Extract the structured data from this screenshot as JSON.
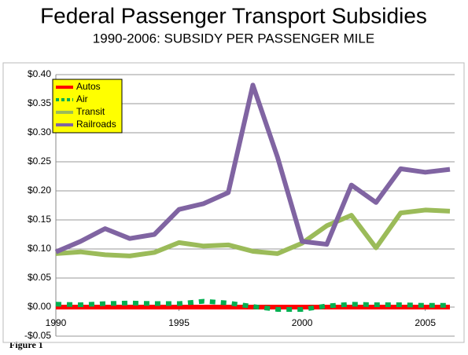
{
  "chart_data": {
    "type": "line",
    "title": "Federal Passenger Transport Subsidies",
    "subtitle": "1990-2006: SUBSIDY PER PASSENGER MILE",
    "note": "Figure 1",
    "x": [
      1990,
      1991,
      1992,
      1993,
      1994,
      1995,
      1996,
      1997,
      1998,
      1999,
      2000,
      2001,
      2002,
      2003,
      2004,
      2005,
      2006
    ],
    "xlim": [
      1990,
      2006
    ],
    "xticks": [
      1990,
      1995,
      2000,
      2005
    ],
    "ylim": [
      -0.05,
      0.4
    ],
    "yticks": [
      {
        "value": -0.05,
        "label": "-$0.05"
      },
      {
        "value": 0,
        "label": "$0.00"
      },
      {
        "value": 0.05,
        "label": "$0.05"
      },
      {
        "value": 0.1,
        "label": "$0.10"
      },
      {
        "value": 0.15,
        "label": "$0.15"
      },
      {
        "value": 0.2,
        "label": "$0.20"
      },
      {
        "value": 0.25,
        "label": "$0.25"
      },
      {
        "value": 0.3,
        "label": "$0.30"
      },
      {
        "value": 0.35,
        "label": "$0.35"
      },
      {
        "value": 0.4,
        "label": "$0.40"
      }
    ],
    "grid": true,
    "legend": "upper left",
    "series": [
      {
        "name": "Autos",
        "color": "#ff0000",
        "dashed": false,
        "values": [
          0,
          0,
          0,
          0,
          0,
          0,
          0,
          0,
          0,
          0,
          0,
          0,
          0,
          0,
          0,
          0,
          0
        ]
      },
      {
        "name": "Air",
        "color": "#00b050",
        "dashed": true,
        "values": [
          0.005,
          0.004,
          0.006,
          0.007,
          0.006,
          0.006,
          0.01,
          0.007,
          0.001,
          -0.004,
          -0.004,
          0.002,
          0.005,
          0.004,
          0.004,
          0.003,
          0.003
        ]
      },
      {
        "name": "Transit",
        "color": "#9bbb59",
        "dashed": false,
        "values": [
          0.092,
          0.095,
          0.09,
          0.088,
          0.094,
          0.111,
          0.105,
          0.107,
          0.096,
          0.092,
          0.11,
          0.14,
          0.158,
          0.102,
          0.162,
          0.167,
          0.165
        ]
      },
      {
        "name": "Railroads",
        "color": "#8064a2",
        "dashed": false,
        "values": [
          0.095,
          0.113,
          0.135,
          0.118,
          0.125,
          0.168,
          0.178,
          0.197,
          0.382,
          0.258,
          0.113,
          0.108,
          0.21,
          0.18,
          0.238,
          0.232,
          0.237
        ]
      }
    ]
  }
}
